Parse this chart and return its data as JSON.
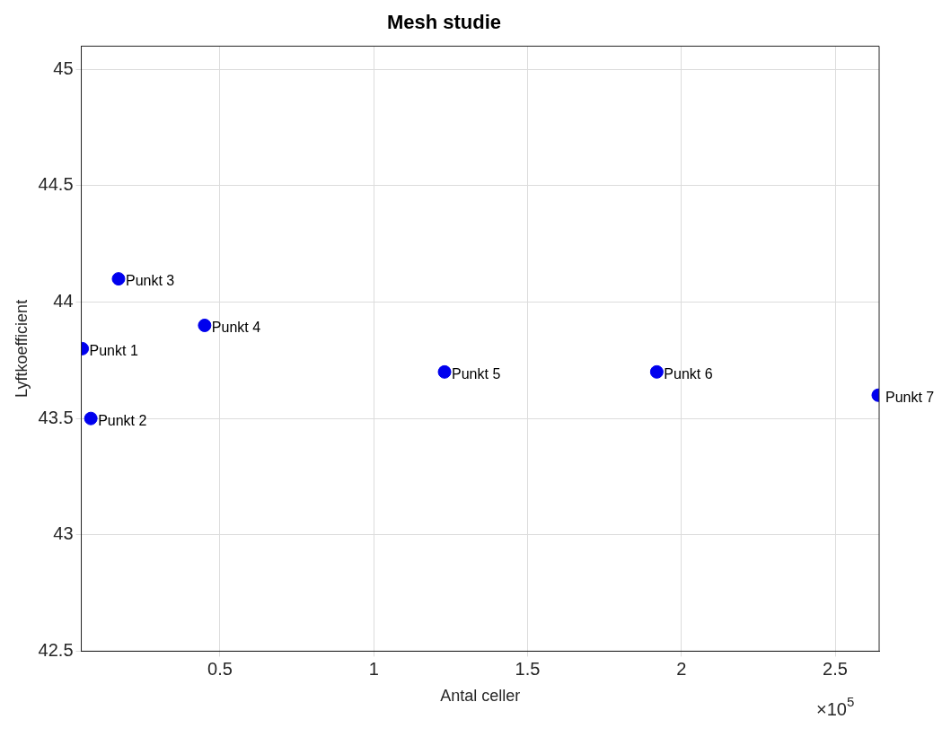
{
  "chart_data": {
    "type": "scatter",
    "title": "Mesh studie",
    "xlabel": "Antal celler",
    "ylabel": "Lyftkoefficient",
    "x": [
      0.052,
      0.08,
      0.17,
      0.45,
      1.23,
      1.92,
      2.64
    ],
    "series": [
      {
        "color": "#0000ee",
        "values": [
          43.8,
          43.5,
          44.1,
          43.9,
          43.7,
          43.7,
          43.6
        ]
      }
    ],
    "xlim": [
      0.049,
      2.643
    ],
    "xticks": [
      0.5,
      1,
      1.5,
      2,
      2.5
    ],
    "ylim": [
      42.5,
      45.1
    ],
    "yticks": [
      42.5,
      43,
      43.5,
      44,
      44.5,
      45
    ],
    "grid": true,
    "marker": "circle",
    "annotations": [
      {
        "text": "Punkt 1",
        "x": 0.052,
        "y": 43.8
      },
      {
        "text": "Punkt 2",
        "x": 0.08,
        "y": 43.5
      },
      {
        "text": "Punkt 3",
        "x": 0.17,
        "y": 44.1
      },
      {
        "text": "Punkt 4",
        "x": 0.45,
        "y": 43.9
      },
      {
        "text": "Punkt 5",
        "x": 1.23,
        "y": 43.7
      },
      {
        "text": "Punkt 6",
        "x": 1.92,
        "y": 43.7
      },
      {
        "text": "Punkt 7",
        "x": 2.64,
        "y": 43.6
      },
      "×10$^{5}$"
    ]
  }
}
